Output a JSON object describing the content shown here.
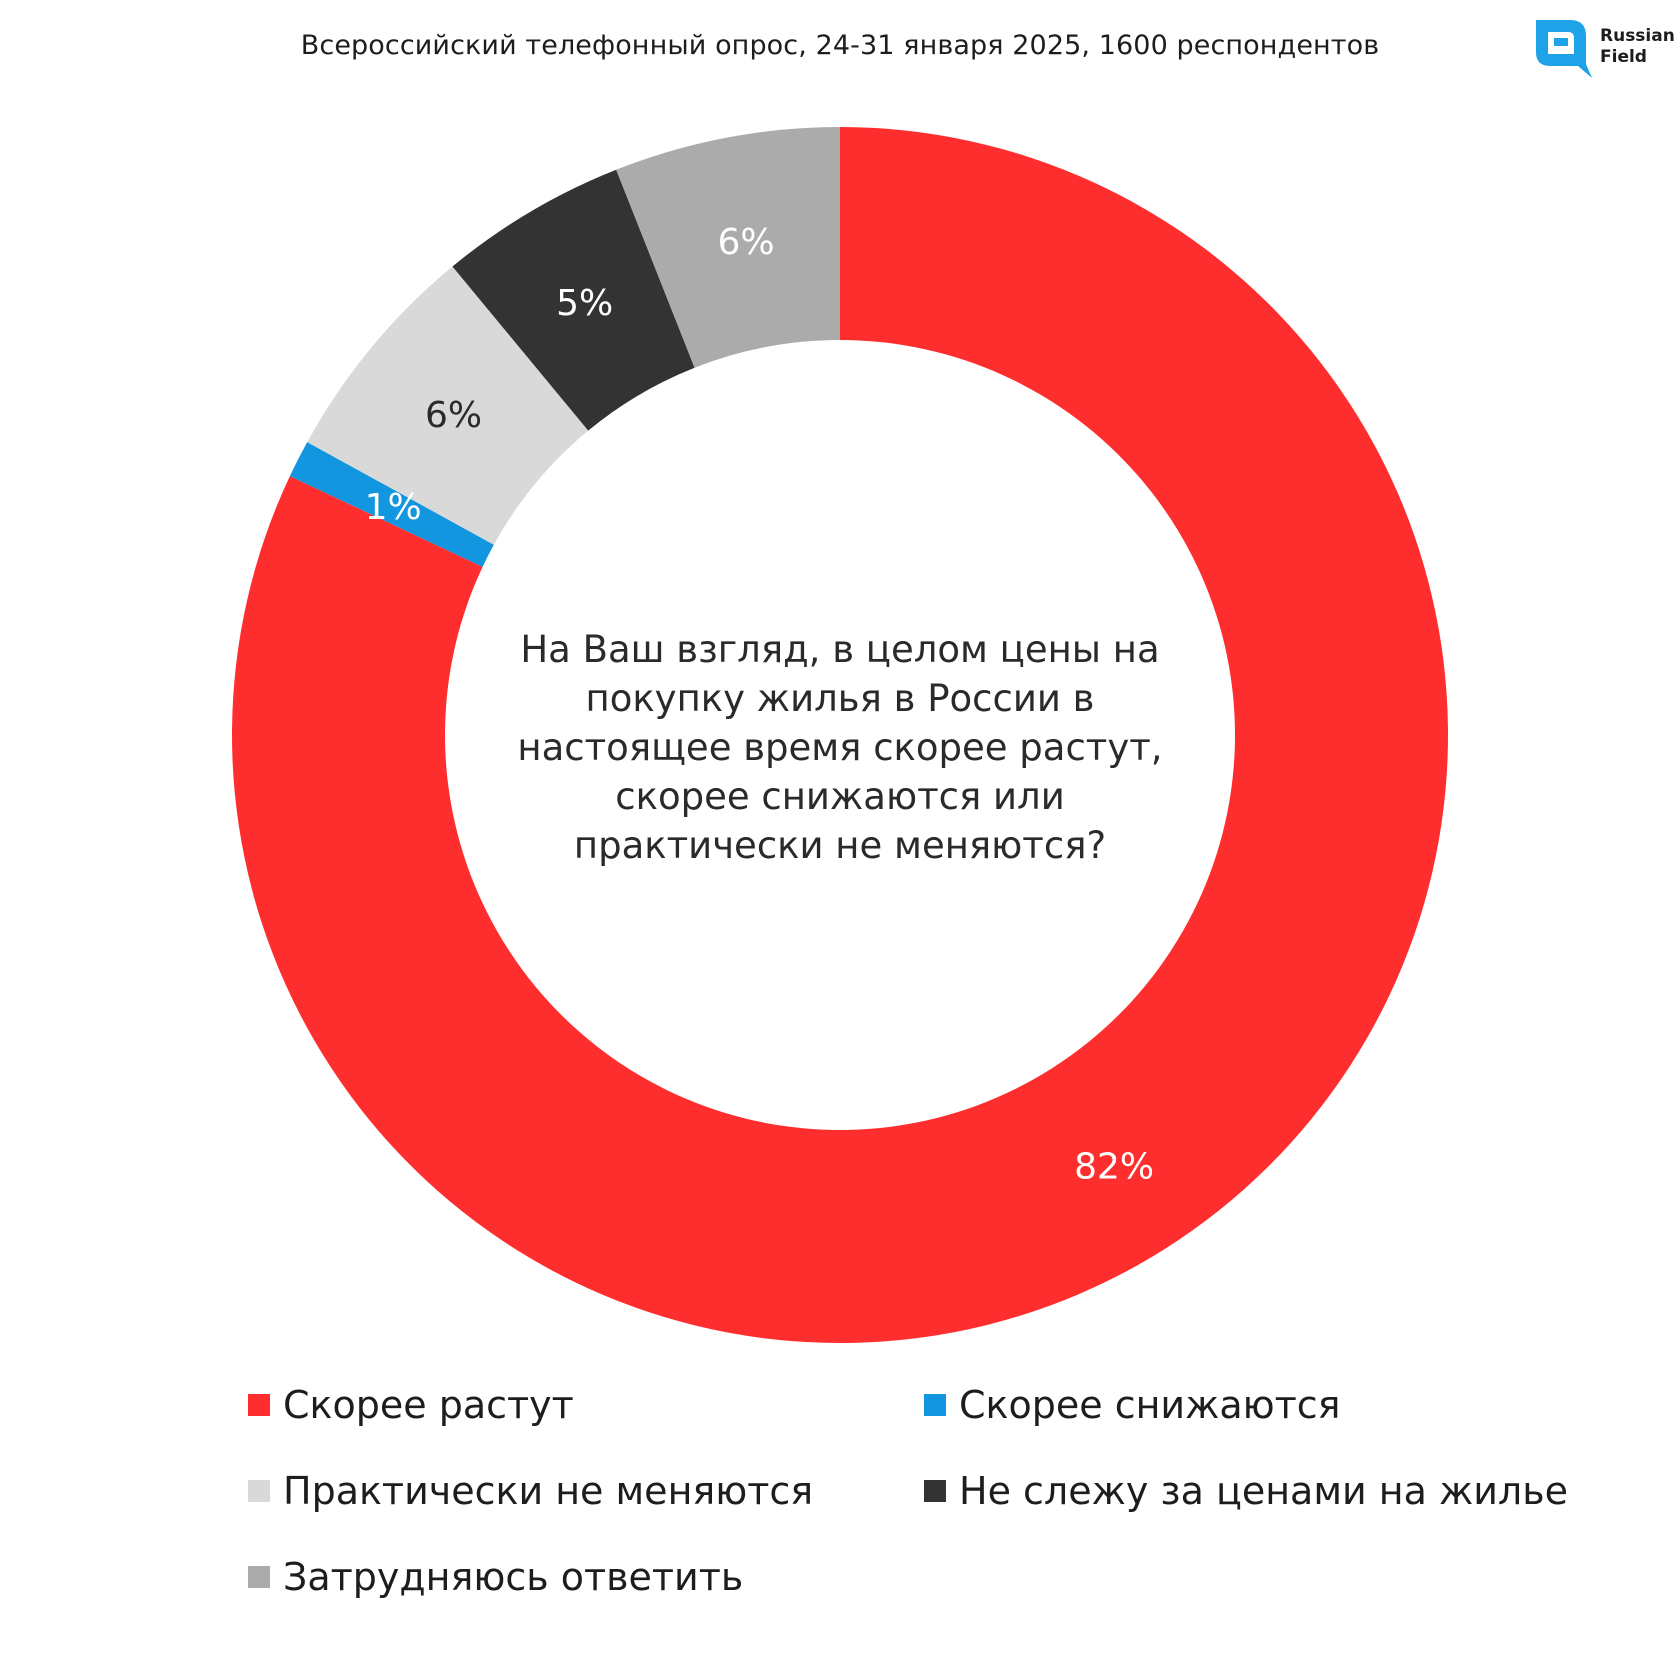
{
  "header": {
    "subtitle": "Всероссийский телефонный опрос, 24-31 января 2025, 1600 респондентов",
    "logo_line1": "Russian",
    "logo_line2": "Field",
    "logo_color": "#1fa3e8"
  },
  "chart_data": {
    "type": "pie",
    "style": "donut",
    "center_text": "На Ваш взгляд, в целом цены на покупку жилья в России в настоящее время скорее растут, скорее снижаются или практически не меняются?",
    "slices": [
      {
        "label": "Скорее растут",
        "value": 82,
        "display": "82%",
        "color": "#ff2e2e",
        "label_color": "#ffffff"
      },
      {
        "label": "Скорее снижаются",
        "value": 1,
        "display": "1%",
        "color": "#1296e0",
        "label_color": "#ffffff"
      },
      {
        "label": "Практически не меняются",
        "value": 6,
        "display": "6%",
        "color": "#d9d9d9",
        "label_color": "#2a2a2a"
      },
      {
        "label": "Не слежу за ценами на жилье",
        "value": 5,
        "display": "5%",
        "color": "#333333",
        "label_color": "#ffffff"
      },
      {
        "label": "Затрудняюсь ответить",
        "value": 6,
        "display": "6%",
        "color": "#ababab",
        "label_color": "#ffffff"
      }
    ],
    "legend_position": "bottom"
  }
}
